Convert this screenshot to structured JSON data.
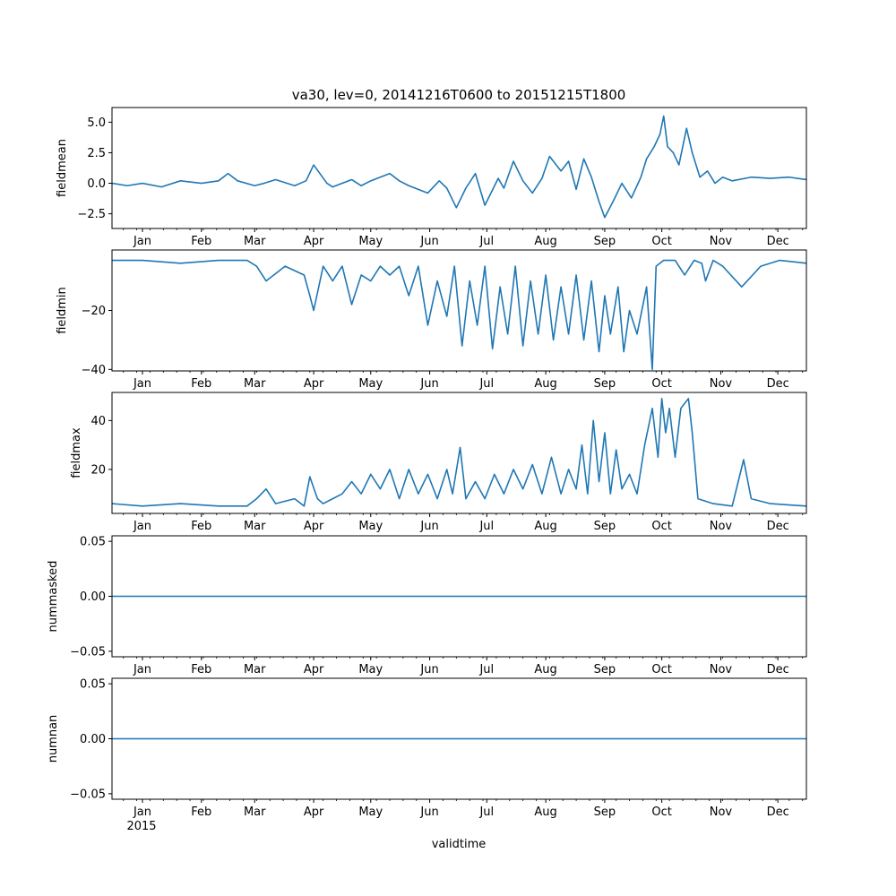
{
  "chart_data": {
    "type": "line",
    "title": "va30, lev=0, 20141216T0600 to 20151215T1800",
    "xlabel": "validtime",
    "x_year_label": "2015",
    "line_color": "#1f77b4",
    "x_range_days": [
      -16,
      349
    ],
    "month_ticks": [
      {
        "label": "Jan",
        "day": 0
      },
      {
        "label": "Feb",
        "day": 31
      },
      {
        "label": "Mar",
        "day": 59
      },
      {
        "label": "Apr",
        "day": 90
      },
      {
        "label": "May",
        "day": 120
      },
      {
        "label": "Jun",
        "day": 151
      },
      {
        "label": "Jul",
        "day": 181
      },
      {
        "label": "Aug",
        "day": 212
      },
      {
        "label": "Sep",
        "day": 243
      },
      {
        "label": "Oct",
        "day": 273
      },
      {
        "label": "Nov",
        "day": 304
      },
      {
        "label": "Dec",
        "day": 334
      }
    ],
    "panels": [
      {
        "ylabel": "fieldmean",
        "ylim": [
          -3.7,
          6.2
        ],
        "yticks": [
          {
            "v": -2.5,
            "label": "−2.5"
          },
          {
            "v": 0,
            "label": "0.0"
          },
          {
            "v": 2.5,
            "label": "2.5"
          },
          {
            "v": 5,
            "label": "5.0"
          }
        ],
        "series": {
          "name": "fieldmean",
          "x": [
            -16,
            -8,
            0,
            10,
            20,
            31,
            40,
            45,
            50,
            59,
            64,
            70,
            80,
            86,
            90,
            97,
            100,
            110,
            115,
            120,
            130,
            135,
            140,
            150,
            156,
            160,
            165,
            170,
            175,
            180,
            187,
            190,
            195,
            200,
            205,
            210,
            214,
            220,
            224,
            228,
            232,
            236,
            240,
            243,
            248,
            252,
            257,
            262,
            265,
            269,
            272,
            274,
            276,
            279,
            282,
            286,
            289,
            293,
            297,
            301,
            305,
            310,
            320,
            330,
            340,
            349
          ],
          "values": [
            0,
            -0.2,
            0,
            -0.3,
            0.2,
            0,
            0.2,
            0.8,
            0.2,
            -0.2,
            0,
            0.3,
            -0.2,
            0.2,
            1.5,
            0,
            -0.3,
            0.3,
            -0.2,
            0.2,
            0.8,
            0.2,
            -0.2,
            -0.8,
            0.2,
            -0.4,
            -2,
            -0.4,
            0.8,
            -1.8,
            0.4,
            -0.4,
            1.8,
            0.2,
            -0.8,
            0.4,
            2.2,
            1,
            1.8,
            -0.5,
            2,
            0.5,
            -1.5,
            -2.8,
            -1.3,
            0,
            -1.2,
            0.5,
            2,
            3,
            4,
            5.5,
            3,
            2.5,
            1.5,
            4.5,
            2.5,
            0.5,
            1,
            0,
            0.5,
            0.2,
            0.5,
            0.4,
            0.5,
            0.3
          ]
        }
      },
      {
        "ylabel": "fieldmin",
        "ylim": [
          -40.5,
          0.5
        ],
        "yticks": [
          {
            "v": -40,
            "label": "−40"
          },
          {
            "v": -20,
            "label": "−20"
          }
        ],
        "series": {
          "name": "fieldmin",
          "x": [
            -16,
            0,
            20,
            40,
            55,
            60,
            65,
            75,
            85,
            88,
            90,
            95,
            100,
            105,
            110,
            115,
            120,
            125,
            130,
            135,
            140,
            145,
            150,
            155,
            160,
            164,
            168,
            172,
            176,
            180,
            184,
            188,
            192,
            196,
            200,
            204,
            208,
            212,
            216,
            220,
            224,
            228,
            232,
            236,
            240,
            243,
            246,
            250,
            253,
            256,
            260,
            265,
            268,
            270,
            274,
            280,
            285,
            290,
            294,
            296,
            300,
            305,
            315,
            325,
            335,
            349
          ],
          "values": [
            -3,
            -3,
            -4,
            -3,
            -3,
            -5,
            -10,
            -5,
            -8,
            -15,
            -20,
            -5,
            -10,
            -5,
            -18,
            -8,
            -10,
            -5,
            -8,
            -5,
            -15,
            -5,
            -25,
            -10,
            -22,
            -5,
            -32,
            -10,
            -25,
            -5,
            -33,
            -12,
            -28,
            -5,
            -32,
            -10,
            -28,
            -8,
            -30,
            -12,
            -28,
            -8,
            -30,
            -10,
            -34,
            -15,
            -28,
            -12,
            -34,
            -20,
            -28,
            -12,
            -40,
            -5,
            -3,
            -3,
            -8,
            -3,
            -4,
            -10,
            -3,
            -5,
            -12,
            -5,
            -3,
            -4
          ]
        }
      },
      {
        "ylabel": "fieldmax",
        "ylim": [
          2,
          51.5
        ],
        "yticks": [
          {
            "v": 20,
            "label": "20"
          },
          {
            "v": 40,
            "label": "40"
          }
        ],
        "series": {
          "name": "fieldmax",
          "x": [
            -16,
            0,
            20,
            40,
            55,
            60,
            65,
            70,
            80,
            85,
            88,
            92,
            95,
            100,
            105,
            110,
            115,
            120,
            125,
            130,
            135,
            140,
            145,
            150,
            155,
            160,
            163,
            167,
            170,
            175,
            180,
            185,
            190,
            195,
            200,
            205,
            210,
            215,
            220,
            224,
            228,
            231,
            234,
            237,
            240,
            243,
            246,
            249,
            252,
            256,
            260,
            264,
            268,
            271,
            273,
            275,
            277,
            280,
            283,
            287,
            289,
            292,
            300,
            310,
            316,
            320,
            330,
            349
          ],
          "values": [
            6,
            5,
            6,
            5,
            5,
            8,
            12,
            6,
            8,
            5,
            17,
            8,
            6,
            8,
            10,
            15,
            10,
            18,
            12,
            20,
            8,
            20,
            10,
            18,
            8,
            20,
            10,
            29,
            8,
            15,
            8,
            18,
            10,
            20,
            12,
            22,
            10,
            25,
            10,
            20,
            12,
            30,
            10,
            40,
            15,
            35,
            10,
            28,
            12,
            18,
            10,
            30,
            45,
            25,
            49,
            35,
            45,
            25,
            45,
            49,
            35,
            8,
            6,
            5,
            24,
            8,
            6,
            5
          ]
        }
      },
      {
        "ylabel": "nummasked",
        "ylim": [
          -0.055,
          0.055
        ],
        "yticks": [
          {
            "v": -0.05,
            "label": "−0.05"
          },
          {
            "v": 0,
            "label": "0.00"
          },
          {
            "v": 0.05,
            "label": "0.05"
          }
        ],
        "series": {
          "name": "nummasked",
          "x": [
            -16,
            349
          ],
          "values": [
            0,
            0
          ]
        }
      },
      {
        "ylabel": "numnan",
        "ylim": [
          -0.055,
          0.055
        ],
        "yticks": [
          {
            "v": -0.05,
            "label": "−0.05"
          },
          {
            "v": 0,
            "label": "0.00"
          },
          {
            "v": 0.05,
            "label": "0.05"
          }
        ],
        "series": {
          "name": "numnan",
          "x": [
            -16,
            349
          ],
          "values": [
            0,
            0
          ]
        }
      }
    ]
  }
}
